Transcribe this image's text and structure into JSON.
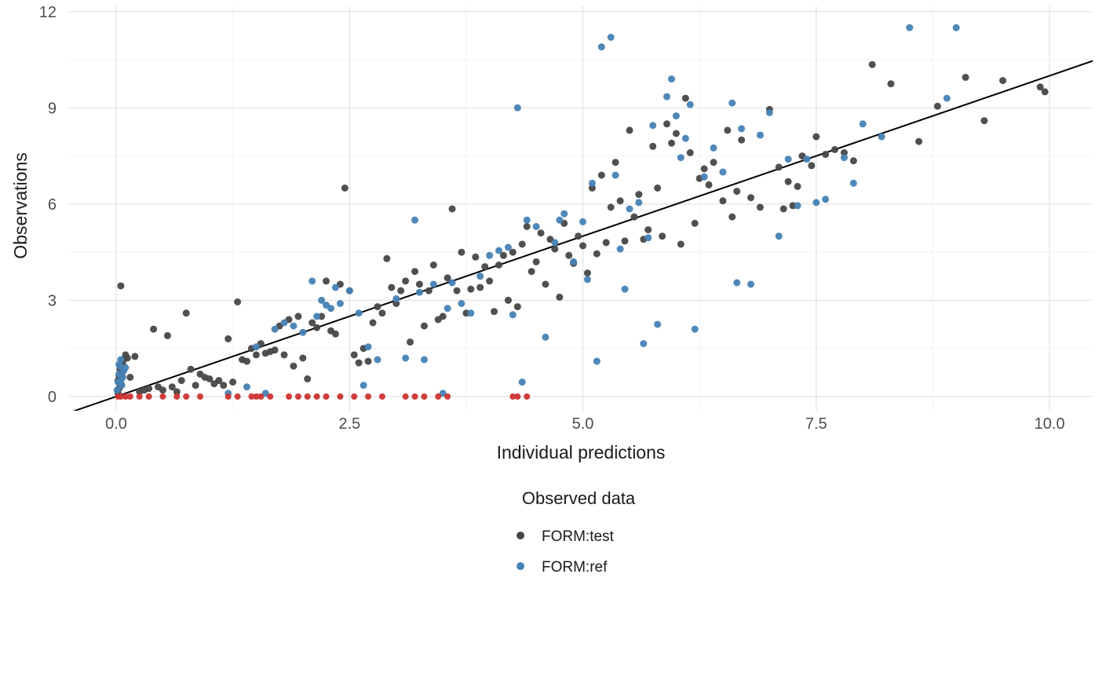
{
  "chart_data": {
    "type": "scatter",
    "title": "",
    "xlabel": "Individual predictions",
    "ylabel": "Observations",
    "xlim": [
      -0.5,
      10.45
    ],
    "ylim": [
      -0.4,
      12.2
    ],
    "x_ticks": [
      0.0,
      2.5,
      5.0,
      7.5,
      10.0
    ],
    "x_tick_labels": [
      "0.0",
      "2.5",
      "5.0",
      "7.5",
      "10.0"
    ],
    "y_ticks": [
      0,
      3,
      6,
      9,
      12
    ],
    "y_tick_labels": [
      "0",
      "3",
      "6",
      "9",
      "12"
    ],
    "grid": "major+minor",
    "grid_color": "#e3e3e3",
    "grid_minor_color": "#f2f2f2",
    "background": "#ffffff",
    "identity_line": {
      "color": "#000000",
      "width": 2,
      "x_start": -0.7,
      "x_end": 10.7
    },
    "legend": {
      "title": "Observed data",
      "position": "bottom"
    },
    "series": [
      {
        "name": "FORM:test",
        "color": "#474747",
        "radius": 4.5,
        "in_legend": true,
        "points": [
          [
            0.02,
            0.1
          ],
          [
            0.03,
            0.25
          ],
          [
            0.05,
            0.4
          ],
          [
            0.05,
            0.55
          ],
          [
            0.06,
            0.7
          ],
          [
            0.04,
            0.85
          ],
          [
            0.07,
            1.0
          ],
          [
            0.08,
            1.15
          ],
          [
            0.1,
            1.3
          ],
          [
            0.02,
            0.5
          ],
          [
            0.03,
            0.65
          ],
          [
            0.05,
            3.45
          ],
          [
            0.12,
            1.2
          ],
          [
            0.15,
            0.6
          ],
          [
            0.2,
            1.25
          ],
          [
            0.25,
            0.15
          ],
          [
            0.3,
            0.2
          ],
          [
            0.35,
            0.25
          ],
          [
            0.4,
            2.1
          ],
          [
            0.45,
            0.3
          ],
          [
            0.5,
            0.2
          ],
          [
            0.55,
            1.9
          ],
          [
            0.6,
            0.3
          ],
          [
            0.65,
            0.15
          ],
          [
            0.7,
            0.5
          ],
          [
            0.75,
            2.6
          ],
          [
            0.8,
            0.85
          ],
          [
            0.85,
            0.35
          ],
          [
            0.9,
            0.7
          ],
          [
            0.95,
            0.6
          ],
          [
            1.0,
            0.55
          ],
          [
            1.05,
            0.4
          ],
          [
            1.1,
            0.5
          ],
          [
            1.15,
            0.35
          ],
          [
            1.2,
            1.8
          ],
          [
            1.25,
            0.45
          ],
          [
            1.3,
            2.95
          ],
          [
            1.35,
            1.15
          ],
          [
            1.4,
            1.1
          ],
          [
            1.45,
            1.5
          ],
          [
            1.5,
            1.3
          ],
          [
            1.55,
            1.65
          ],
          [
            1.6,
            1.35
          ],
          [
            1.65,
            1.4
          ],
          [
            1.7,
            1.45
          ],
          [
            1.75,
            2.2
          ],
          [
            1.8,
            1.3
          ],
          [
            1.85,
            2.4
          ],
          [
            1.9,
            0.95
          ],
          [
            1.95,
            2.5
          ],
          [
            2.0,
            1.2
          ],
          [
            2.05,
            0.55
          ],
          [
            2.1,
            2.3
          ],
          [
            2.15,
            2.15
          ],
          [
            2.2,
            2.5
          ],
          [
            2.25,
            3.6
          ],
          [
            2.3,
            2.05
          ],
          [
            2.35,
            1.95
          ],
          [
            2.4,
            3.5
          ],
          [
            2.45,
            6.5
          ],
          [
            2.5,
            3.3
          ],
          [
            2.55,
            1.3
          ],
          [
            2.6,
            1.05
          ],
          [
            2.65,
            1.5
          ],
          [
            2.7,
            1.1
          ],
          [
            2.75,
            2.3
          ],
          [
            2.8,
            2.8
          ],
          [
            2.85,
            2.6
          ],
          [
            2.9,
            4.3
          ],
          [
            2.95,
            3.4
          ],
          [
            3.0,
            2.9
          ],
          [
            3.05,
            3.3
          ],
          [
            3.1,
            3.6
          ],
          [
            3.15,
            1.7
          ],
          [
            3.2,
            3.9
          ],
          [
            3.25,
            3.5
          ],
          [
            3.3,
            2.2
          ],
          [
            3.35,
            3.3
          ],
          [
            3.4,
            4.1
          ],
          [
            3.45,
            2.4
          ],
          [
            3.5,
            2.5
          ],
          [
            3.55,
            3.7
          ],
          [
            3.6,
            5.85
          ],
          [
            3.65,
            3.3
          ],
          [
            3.7,
            4.5
          ],
          [
            3.75,
            2.6
          ],
          [
            3.8,
            3.35
          ],
          [
            3.85,
            4.35
          ],
          [
            3.9,
            3.4
          ],
          [
            3.95,
            4.05
          ],
          [
            4.0,
            3.6
          ],
          [
            4.05,
            2.65
          ],
          [
            4.1,
            4.1
          ],
          [
            4.15,
            4.4
          ],
          [
            4.2,
            3.0
          ],
          [
            4.25,
            4.5
          ],
          [
            4.3,
            2.8
          ],
          [
            4.35,
            4.75
          ],
          [
            4.4,
            5.3
          ],
          [
            4.45,
            3.9
          ],
          [
            4.5,
            4.2
          ],
          [
            4.55,
            5.1
          ],
          [
            4.6,
            3.5
          ],
          [
            4.65,
            4.9
          ],
          [
            4.7,
            4.6
          ],
          [
            4.75,
            3.1
          ],
          [
            4.8,
            5.4
          ],
          [
            4.85,
            4.4
          ],
          [
            4.9,
            4.15
          ],
          [
            4.95,
            5.0
          ],
          [
            5.0,
            4.7
          ],
          [
            5.05,
            3.85
          ],
          [
            5.1,
            6.5
          ],
          [
            5.15,
            4.45
          ],
          [
            5.2,
            6.9
          ],
          [
            5.25,
            4.8
          ],
          [
            5.3,
            5.9
          ],
          [
            5.35,
            7.3
          ],
          [
            5.4,
            6.1
          ],
          [
            5.45,
            4.85
          ],
          [
            5.5,
            8.3
          ],
          [
            5.55,
            5.6
          ],
          [
            5.6,
            6.3
          ],
          [
            5.65,
            4.9
          ],
          [
            5.7,
            5.2
          ],
          [
            5.75,
            7.8
          ],
          [
            5.8,
            6.5
          ],
          [
            5.85,
            5.0
          ],
          [
            5.9,
            8.5
          ],
          [
            5.95,
            7.9
          ],
          [
            6.0,
            8.2
          ],
          [
            6.05,
            4.75
          ],
          [
            6.1,
            9.3
          ],
          [
            6.15,
            7.6
          ],
          [
            6.2,
            5.4
          ],
          [
            6.25,
            6.8
          ],
          [
            6.3,
            7.1
          ],
          [
            6.35,
            6.6
          ],
          [
            6.4,
            7.3
          ],
          [
            6.5,
            6.1
          ],
          [
            6.55,
            8.3
          ],
          [
            6.6,
            5.6
          ],
          [
            6.65,
            6.4
          ],
          [
            6.7,
            8.0
          ],
          [
            6.8,
            6.2
          ],
          [
            6.9,
            5.9
          ],
          [
            7.0,
            8.95
          ],
          [
            7.1,
            7.15
          ],
          [
            7.15,
            5.85
          ],
          [
            7.2,
            6.7
          ],
          [
            7.25,
            5.95
          ],
          [
            7.3,
            6.55
          ],
          [
            7.35,
            7.5
          ],
          [
            7.45,
            7.2
          ],
          [
            7.5,
            8.1
          ],
          [
            7.6,
            7.55
          ],
          [
            7.7,
            7.7
          ],
          [
            7.8,
            7.6
          ],
          [
            7.9,
            7.35
          ],
          [
            8.1,
            10.35
          ],
          [
            8.3,
            9.75
          ],
          [
            8.6,
            7.95
          ],
          [
            8.8,
            9.05
          ],
          [
            9.1,
            9.95
          ],
          [
            9.3,
            8.6
          ],
          [
            9.5,
            9.85
          ],
          [
            9.9,
            9.65
          ],
          [
            9.95,
            9.5
          ]
        ]
      },
      {
        "name": "FORM:ref",
        "color": "#4682B4",
        "radius": 4.5,
        "in_legend": true,
        "points": [
          [
            0.01,
            0.2
          ],
          [
            0.02,
            0.45
          ],
          [
            0.03,
            0.7
          ],
          [
            0.04,
            0.95
          ],
          [
            0.05,
            1.15
          ],
          [
            0.06,
            0.35
          ],
          [
            0.07,
            0.6
          ],
          [
            0.08,
            0.8
          ],
          [
            0.03,
            1.0
          ],
          [
            0.05,
            0.5
          ],
          [
            0.1,
            0.9
          ],
          [
            1.2,
            0.1
          ],
          [
            1.4,
            0.3
          ],
          [
            1.5,
            1.55
          ],
          [
            1.6,
            0.1
          ],
          [
            1.7,
            2.1
          ],
          [
            1.8,
            2.3
          ],
          [
            1.9,
            2.2
          ],
          [
            2.0,
            2.0
          ],
          [
            2.1,
            3.6
          ],
          [
            2.15,
            2.5
          ],
          [
            2.2,
            3.0
          ],
          [
            2.25,
            2.85
          ],
          [
            2.3,
            2.75
          ],
          [
            2.35,
            3.4
          ],
          [
            2.4,
            2.9
          ],
          [
            2.5,
            3.3
          ],
          [
            2.6,
            2.6
          ],
          [
            2.65,
            0.35
          ],
          [
            2.7,
            1.55
          ],
          [
            2.8,
            1.15
          ],
          [
            3.0,
            3.05
          ],
          [
            3.1,
            1.2
          ],
          [
            3.2,
            5.5
          ],
          [
            3.25,
            3.25
          ],
          [
            3.3,
            1.15
          ],
          [
            3.4,
            3.5
          ],
          [
            3.5,
            0.1
          ],
          [
            3.55,
            2.75
          ],
          [
            3.6,
            3.55
          ],
          [
            3.7,
            2.9
          ],
          [
            3.8,
            2.6
          ],
          [
            3.9,
            3.75
          ],
          [
            4.0,
            4.4
          ],
          [
            4.1,
            4.55
          ],
          [
            4.2,
            4.65
          ],
          [
            4.25,
            2.55
          ],
          [
            4.3,
            9.0
          ],
          [
            4.35,
            0.45
          ],
          [
            4.4,
            5.5
          ],
          [
            4.5,
            5.3
          ],
          [
            4.6,
            1.85
          ],
          [
            4.7,
            4.8
          ],
          [
            4.75,
            5.5
          ],
          [
            4.8,
            5.7
          ],
          [
            4.9,
            4.2
          ],
          [
            5.0,
            5.45
          ],
          [
            5.05,
            3.65
          ],
          [
            5.1,
            6.65
          ],
          [
            5.15,
            1.1
          ],
          [
            5.2,
            10.9
          ],
          [
            5.3,
            11.2
          ],
          [
            5.35,
            6.9
          ],
          [
            5.4,
            4.6
          ],
          [
            5.45,
            3.35
          ],
          [
            5.5,
            5.85
          ],
          [
            5.6,
            6.05
          ],
          [
            5.65,
            1.65
          ],
          [
            5.7,
            4.95
          ],
          [
            5.75,
            8.45
          ],
          [
            5.8,
            2.25
          ],
          [
            5.9,
            9.35
          ],
          [
            5.95,
            9.9
          ],
          [
            6.0,
            8.75
          ],
          [
            6.05,
            7.45
          ],
          [
            6.1,
            8.05
          ],
          [
            6.15,
            9.1
          ],
          [
            6.2,
            2.1
          ],
          [
            6.3,
            6.85
          ],
          [
            6.4,
            7.75
          ],
          [
            6.5,
            7.0
          ],
          [
            6.6,
            9.15
          ],
          [
            6.65,
            3.55
          ],
          [
            6.7,
            8.35
          ],
          [
            6.8,
            3.5
          ],
          [
            6.9,
            8.15
          ],
          [
            7.0,
            8.85
          ],
          [
            7.1,
            5.0
          ],
          [
            7.2,
            7.4
          ],
          [
            7.3,
            5.95
          ],
          [
            7.4,
            7.4
          ],
          [
            7.5,
            6.05
          ],
          [
            7.6,
            6.15
          ],
          [
            7.8,
            7.45
          ],
          [
            7.9,
            6.65
          ],
          [
            8.0,
            8.5
          ],
          [
            8.2,
            8.1
          ],
          [
            8.5,
            11.5
          ],
          [
            8.9,
            9.3
          ],
          [
            9.0,
            11.5
          ]
        ]
      },
      {
        "name": "",
        "color": "#CC3333",
        "radius": 4,
        "in_legend": false,
        "points": [
          [
            0.02,
            0
          ],
          [
            0.05,
            0
          ],
          [
            0.1,
            0
          ],
          [
            0.15,
            0
          ],
          [
            0.25,
            0
          ],
          [
            0.35,
            0
          ],
          [
            0.5,
            0
          ],
          [
            0.65,
            0
          ],
          [
            0.75,
            0
          ],
          [
            0.9,
            0
          ],
          [
            1.2,
            0
          ],
          [
            1.3,
            0
          ],
          [
            1.45,
            0
          ],
          [
            1.5,
            0
          ],
          [
            1.55,
            0
          ],
          [
            1.65,
            0
          ],
          [
            1.85,
            0
          ],
          [
            1.95,
            0
          ],
          [
            2.05,
            0
          ],
          [
            2.15,
            0
          ],
          [
            2.25,
            0
          ],
          [
            2.4,
            0
          ],
          [
            2.55,
            0
          ],
          [
            2.7,
            0
          ],
          [
            2.85,
            0
          ],
          [
            3.1,
            0
          ],
          [
            3.2,
            0
          ],
          [
            3.3,
            0
          ],
          [
            3.45,
            0
          ],
          [
            3.55,
            0
          ],
          [
            4.25,
            0
          ],
          [
            4.3,
            0
          ],
          [
            4.4,
            0
          ]
        ]
      }
    ]
  }
}
